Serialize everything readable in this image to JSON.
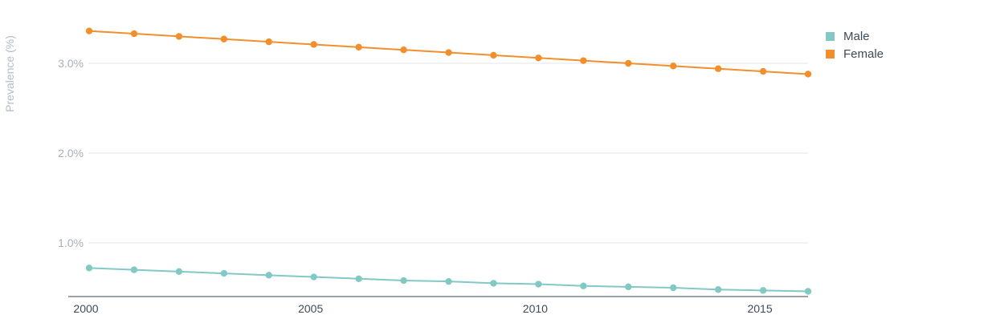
{
  "chart_data": {
    "type": "line",
    "title": "",
    "xlabel": "",
    "ylabel": "Prevalence (%)",
    "x": [
      2000,
      2001,
      2002,
      2003,
      2004,
      2005,
      2006,
      2007,
      2008,
      2009,
      2010,
      2011,
      2012,
      2013,
      2014,
      2015,
      2016
    ],
    "xticks": [
      2000,
      2005,
      2010,
      2015
    ],
    "xlim": [
      2000,
      2016
    ],
    "ylim": [
      0.4,
      3.45
    ],
    "yticks": [
      1.0,
      2.0,
      3.0
    ],
    "ytick_labels": [
      "1.0%",
      "2.0%",
      "3.0%"
    ],
    "grid": true,
    "legend_position": "top-right",
    "series": [
      {
        "name": "Male",
        "color": "#82c9c5",
        "values": [
          0.72,
          0.7,
          0.68,
          0.66,
          0.64,
          0.62,
          0.6,
          0.58,
          0.57,
          0.55,
          0.54,
          0.52,
          0.51,
          0.5,
          0.48,
          0.47,
          0.46
        ]
      },
      {
        "name": "Female",
        "color": "#f28f2b",
        "values": [
          3.36,
          3.33,
          3.3,
          3.27,
          3.24,
          3.21,
          3.18,
          3.15,
          3.12,
          3.09,
          3.06,
          3.03,
          3.0,
          2.97,
          2.94,
          2.91,
          2.88
        ]
      }
    ]
  }
}
